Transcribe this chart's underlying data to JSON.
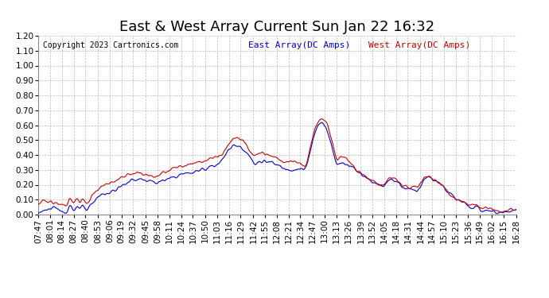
{
  "title": "East & West Array Current Sun Jan 22 16:32",
  "copyright": "Copyright 2023 Cartronics.com",
  "legend_east": "East Array(DC Amps)",
  "legend_west": "West Array(DC Amps)",
  "east_color": "#0000cc",
  "west_color": "#cc0000",
  "ylim": [
    0,
    1.2
  ],
  "yticks": [
    0.0,
    0.1,
    0.2,
    0.3,
    0.4,
    0.5,
    0.6,
    0.7,
    0.8,
    0.9,
    1.0,
    1.1,
    1.2
  ],
  "background_color": "#ffffff",
  "grid_color": "#bbbbbb",
  "title_fontsize": 13,
  "tick_fontsize": 7.5,
  "line_width": 0.8,
  "x_labels": [
    "07:47",
    "08:01",
    "08:14",
    "08:27",
    "08:40",
    "08:53",
    "09:06",
    "09:19",
    "09:32",
    "09:45",
    "09:58",
    "10:11",
    "10:24",
    "10:37",
    "10:50",
    "11:03",
    "11:16",
    "11:29",
    "11:42",
    "11:55",
    "12:08",
    "12:21",
    "12:34",
    "12:47",
    "13:00",
    "13:13",
    "13:26",
    "13:39",
    "13:52",
    "14:05",
    "14:18",
    "14:31",
    "14:44",
    "14:57",
    "15:10",
    "15:23",
    "15:36",
    "15:49",
    "16:02",
    "16:15",
    "16:28"
  ]
}
